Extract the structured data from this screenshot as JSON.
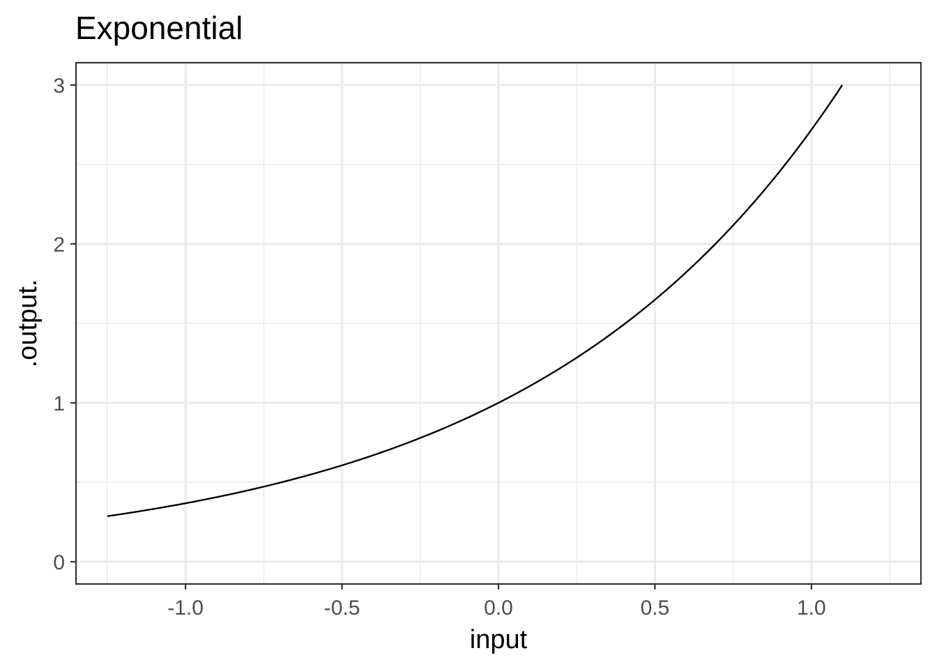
{
  "chart_data": {
    "type": "line",
    "title": "Exponential",
    "xlabel": "input",
    "ylabel": ".output.",
    "xlim": [
      -1.35,
      1.35
    ],
    "ylim": [
      -0.14,
      3.14
    ],
    "x_major_ticks": [
      -1.0,
      -0.5,
      0.0,
      0.5,
      1.0
    ],
    "x_tick_labels": [
      "-1.0",
      "-0.5",
      "0.0",
      "0.5",
      "1.0"
    ],
    "x_minor_ticks": [
      -1.25,
      -0.75,
      -0.25,
      0.25,
      0.75,
      1.25
    ],
    "y_major_ticks": [
      0,
      1,
      2,
      3
    ],
    "y_tick_labels": [
      "0",
      "1",
      "2",
      "3"
    ],
    "y_minor_ticks": [
      0.5,
      1.5,
      2.5
    ],
    "grid": true,
    "series": [
      {
        "function": "exp",
        "x": [
          -1.25,
          -1.0,
          -0.75,
          -0.5,
          -0.25,
          0.0,
          0.25,
          0.5,
          0.75,
          1.0,
          1.0986
        ],
        "y": [
          0.287,
          0.368,
          0.472,
          0.607,
          0.779,
          1.0,
          1.284,
          1.649,
          2.117,
          2.718,
          3.0
        ]
      }
    ],
    "colors": {
      "line": "#000000",
      "grid": "#ebebeb",
      "border": "#333333",
      "tick_text": "#4d4d4d"
    }
  }
}
